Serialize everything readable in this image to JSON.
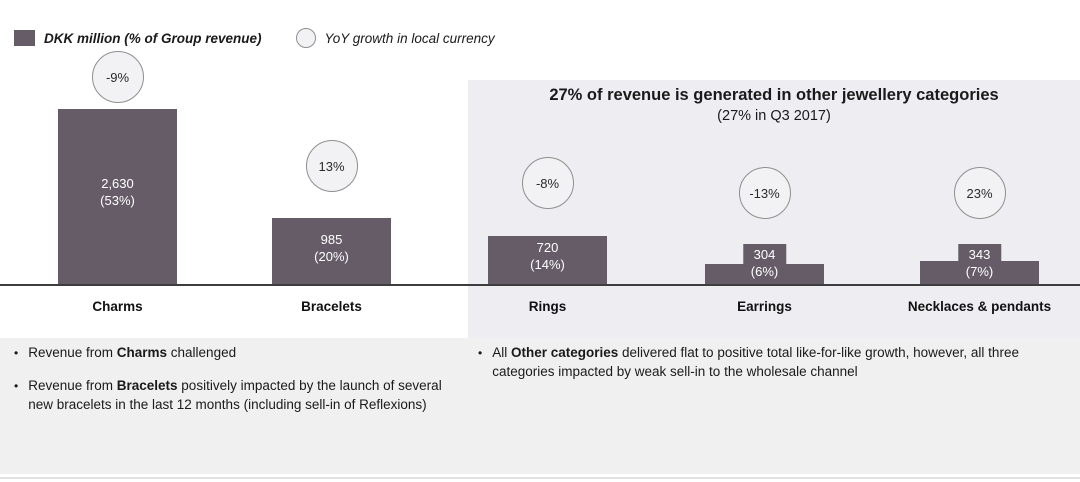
{
  "legend": {
    "bar_label": "DKK million (% of Group revenue)",
    "circle_label": "YoY growth in local currency"
  },
  "panel": {
    "title": "27% of revenue is generated in other jewellery categories",
    "subtitle": "(27% in Q3 2017)"
  },
  "chart_data": {
    "type": "bar",
    "unit": "DKK million",
    "categories": [
      "Charms",
      "Bracelets",
      "Rings",
      "Earrings",
      "Necklaces & pendants"
    ],
    "values": [
      2630,
      985,
      720,
      304,
      343
    ],
    "value_labels": [
      "2,630",
      "985",
      "720",
      "304",
      "343"
    ],
    "share_labels": [
      "(53%)",
      "(20%)",
      "(14%)",
      "(6%)",
      "(7%)"
    ],
    "growth_labels": [
      "-9%",
      "13%",
      "-8%",
      "-13%",
      "23%"
    ],
    "bar_color": "#665c68",
    "ylim": [
      0,
      2800
    ],
    "legend_entries": [
      "DKK million (% of Group revenue)",
      "YoY growth in local currency"
    ],
    "annotation": "27% of revenue is generated in other jewellery categories (27% in Q3 2017)"
  },
  "notes": {
    "left": [
      {
        "pre": "Revenue from ",
        "bold": "Charms",
        "post": " challenged"
      },
      {
        "pre": "Revenue from ",
        "bold": "Bracelets",
        "post": " positively impacted by the launch of several new bracelets in the last 12 months (including sell-in of Reflexions)"
      }
    ],
    "right": [
      {
        "pre": "All ",
        "bold": "Other categories",
        "post": " delivered flat to positive total like-for-like growth, however, all three categories impacted by weak sell-in to the wholesale channel"
      }
    ]
  },
  "ui": {
    "bullet": "•"
  }
}
